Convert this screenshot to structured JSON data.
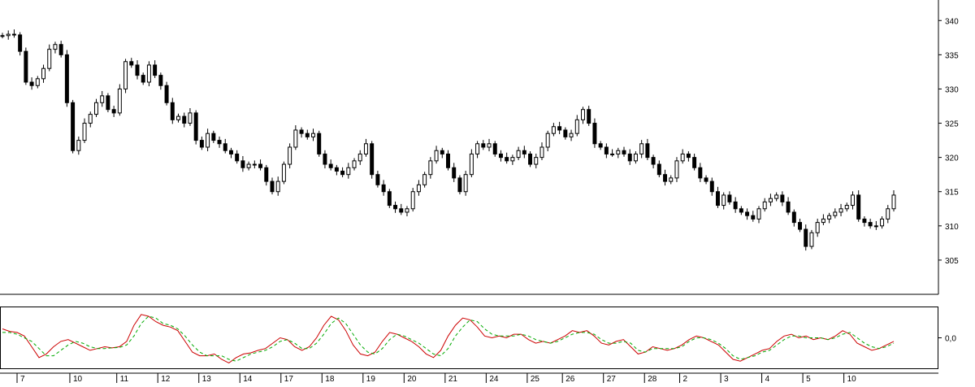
{
  "chart_data": [
    {
      "type": "candlestick",
      "title": "",
      "ylim": [
        300,
        343
      ],
      "y_ticks": [
        "340",
        "335",
        "330",
        "325",
        "320",
        "315",
        "310",
        "305"
      ],
      "x_tick_labels": [
        "7",
        "10",
        "11",
        "12",
        "13",
        "14",
        "17",
        "18",
        "19",
        "20",
        "21",
        "24",
        "25",
        "26",
        "27",
        "28",
        "2",
        "3",
        "4",
        "5",
        "10"
      ],
      "grid": false,
      "colors": {
        "up": "#ffffff",
        "down": "#000000",
        "wick": "#000000"
      },
      "closes": [
        337.8,
        338.0,
        337.9,
        335.5,
        331.0,
        330.5,
        331.5,
        333.0,
        335.8,
        336.5,
        335.0,
        328.0,
        321.0,
        322.5,
        325.0,
        326.3,
        328.0,
        329.0,
        327.0,
        326.5,
        330.0,
        334.0,
        333.5,
        332.0,
        331.0,
        333.5,
        332.0,
        330.5,
        328.0,
        325.5,
        326.0,
        325.0,
        326.5,
        322.5,
        321.5,
        323.5,
        322.5,
        322.0,
        321.0,
        320.5,
        319.5,
        318.5,
        319.0,
        319.0,
        318.5,
        316.5,
        315.0,
        316.5,
        319.0,
        321.5,
        324.0,
        323.5,
        323.0,
        323.5,
        320.5,
        319.0,
        318.5,
        318.0,
        317.5,
        318.5,
        319.5,
        320.5,
        322.0,
        317.5,
        316.0,
        315.0,
        313.0,
        312.5,
        312.0,
        312.5,
        315.0,
        316.0,
        317.5,
        319.5,
        321.0,
        320.5,
        318.5,
        317.0,
        315.0,
        317.5,
        320.5,
        322.0,
        321.5,
        322.0,
        320.5,
        320.0,
        319.5,
        320.0,
        321.0,
        320.5,
        319.0,
        320.0,
        321.5,
        323.5,
        324.5,
        324.0,
        323.0,
        323.5,
        325.5,
        327.0,
        325.0,
        322.0,
        321.5,
        320.5,
        320.5,
        321.0,
        320.5,
        319.5,
        320.5,
        322.0,
        320.0,
        319.0,
        317.5,
        316.5,
        317.0,
        319.5,
        320.5,
        320.0,
        318.5,
        317.0,
        316.5,
        315.0,
        313.0,
        314.5,
        313.5,
        312.5,
        312.0,
        311.5,
        311.0,
        312.5,
        313.5,
        314.0,
        314.5,
        313.5,
        312.0,
        310.5,
        309.5,
        307.0,
        309.0,
        310.5,
        311.0,
        311.5,
        312.0,
        312.5,
        313.0,
        314.5,
        311.0,
        310.5,
        310.0,
        310.0,
        311.0,
        312.5,
        314.5
      ],
      "x_tick_ticks": [
        0,
        9,
        17,
        24,
        31,
        38,
        45,
        52,
        59,
        66,
        73,
        80,
        87,
        93,
        100,
        107,
        113,
        120,
        127,
        134,
        141
      ]
    },
    {
      "type": "line",
      "y_ticks": [
        "0,0"
      ],
      "colors": {
        "series_1": "#cc0000",
        "series_2": "#00aa00"
      },
      "series": [
        {
          "values": [
            0.25,
            0.18,
            0.15,
            0.05,
            -0.25,
            -0.55,
            -0.45,
            -0.25,
            -0.1,
            -0.05,
            -0.15,
            -0.25,
            -0.35,
            -0.3,
            -0.25,
            -0.28,
            -0.25,
            -0.1,
            0.35,
            0.65,
            0.6,
            0.45,
            0.35,
            0.3,
            0.2,
            -0.1,
            -0.4,
            -0.5,
            -0.5,
            -0.45,
            -0.6,
            -0.7,
            -0.55,
            -0.45,
            -0.42,
            -0.35,
            -0.3,
            -0.15,
            0.0,
            -0.05,
            -0.25,
            -0.35,
            -0.25,
            0.0,
            0.35,
            0.6,
            0.5,
            0.2,
            -0.2,
            -0.45,
            -0.5,
            -0.4,
            -0.1,
            0.15,
            0.1,
            0.0,
            -0.1,
            -0.25,
            -0.45,
            -0.55,
            -0.35,
            0.05,
            0.35,
            0.55,
            0.5,
            0.3,
            0.05,
            0.0,
            0.05,
            0.0,
            0.1,
            0.1,
            -0.05,
            -0.15,
            -0.1,
            -0.15,
            -0.05,
            0.05,
            0.2,
            0.15,
            0.2,
            0.05,
            -0.15,
            -0.2,
            -0.1,
            -0.05,
            -0.25,
            -0.45,
            -0.4,
            -0.25,
            -0.3,
            -0.35,
            -0.3,
            -0.2,
            -0.05,
            0.05,
            0.0,
            -0.1,
            -0.2,
            -0.4,
            -0.6,
            -0.65,
            -0.55,
            -0.45,
            -0.35,
            -0.3,
            -0.1,
            0.05,
            0.1,
            0.0,
            0.05,
            -0.05,
            0.0,
            -0.05,
            0.05,
            0.2,
            0.1,
            -0.15,
            -0.25,
            -0.35,
            -0.3,
            -0.2,
            -0.1
          ]
        },
        {
          "values": [
            0.15,
            0.15,
            0.1,
            0.0,
            -0.1,
            -0.3,
            -0.5,
            -0.5,
            -0.35,
            -0.2,
            -0.1,
            -0.15,
            -0.25,
            -0.3,
            -0.3,
            -0.28,
            -0.27,
            -0.2,
            0.05,
            0.4,
            0.6,
            0.55,
            0.4,
            0.35,
            0.25,
            0.05,
            -0.2,
            -0.4,
            -0.5,
            -0.5,
            -0.5,
            -0.6,
            -0.65,
            -0.55,
            -0.45,
            -0.4,
            -0.35,
            -0.25,
            -0.1,
            -0.05,
            -0.15,
            -0.3,
            -0.3,
            -0.15,
            0.1,
            0.4,
            0.55,
            0.4,
            0.1,
            -0.2,
            -0.4,
            -0.45,
            -0.3,
            -0.05,
            0.1,
            0.05,
            -0.05,
            -0.15,
            -0.3,
            -0.45,
            -0.5,
            -0.3,
            0.05,
            0.3,
            0.5,
            0.45,
            0.25,
            0.1,
            0.05,
            0.05,
            0.05,
            0.1,
            0.05,
            -0.05,
            -0.1,
            -0.15,
            -0.1,
            0.0,
            0.1,
            0.15,
            0.15,
            0.1,
            -0.05,
            -0.15,
            -0.15,
            -0.1,
            -0.15,
            -0.35,
            -0.4,
            -0.3,
            -0.3,
            -0.3,
            -0.3,
            -0.25,
            -0.1,
            0.0,
            0.0,
            -0.05,
            -0.15,
            -0.3,
            -0.5,
            -0.6,
            -0.55,
            -0.5,
            -0.4,
            -0.35,
            -0.2,
            -0.05,
            0.05,
            0.05,
            0.0,
            0.0,
            0.0,
            -0.05,
            0.0,
            0.1,
            0.15,
            0.0,
            -0.15,
            -0.25,
            -0.3,
            -0.25,
            -0.15
          ]
        }
      ]
    }
  ]
}
